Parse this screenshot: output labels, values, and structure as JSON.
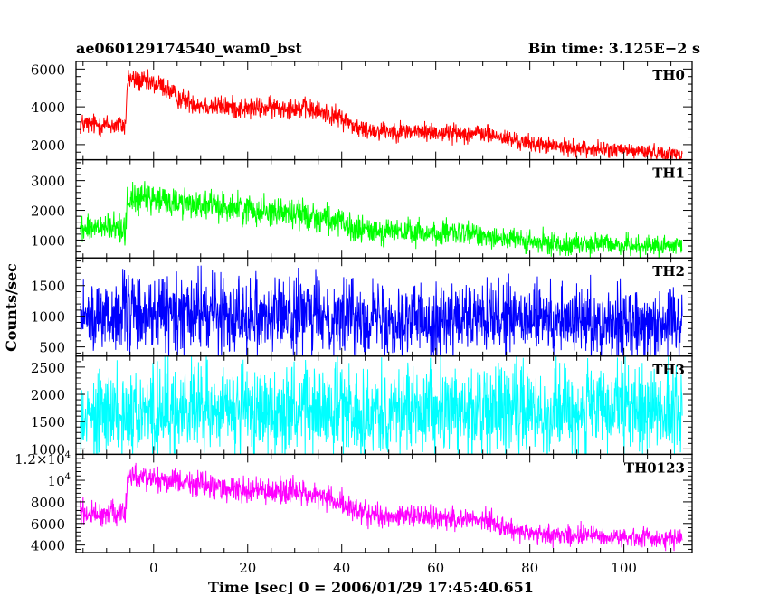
{
  "header": {
    "obs_id": "ae060129174540_wam0_bst",
    "bin_time": "Bin time: 3.125E−2 s"
  },
  "colors": {
    "TH0": "#ff0000",
    "TH1": "#00ff00",
    "TH2": "#0000ff",
    "TH3": "#00ffff",
    "TH0123": "#ff00ff"
  },
  "chart_data": {
    "type": "line",
    "xlabel": "Time [sec] 0 = 2006/01/29 17:45:40.651",
    "ylabel": "Counts/sec",
    "xlim": [
      -16.5,
      114.5
    ],
    "x_ticks": [
      0,
      20,
      40,
      60,
      80,
      100
    ],
    "x_range_data": [
      -15.6,
      112.4
    ],
    "panels": [
      {
        "name": "TH0",
        "ylim": [
          1200,
          6400
        ],
        "y_ticks": [
          {
            "v": 2000,
            "label": "2000"
          },
          {
            "v": 4000,
            "label": "4000"
          },
          {
            "v": 6000,
            "label": "6000"
          }
        ],
        "trend": [
          [
            -15.6,
            3100
          ],
          [
            -6,
            3000
          ],
          [
            -5.5,
            5500
          ],
          [
            -2,
            5300
          ],
          [
            2,
            5100
          ],
          [
            5,
            4500
          ],
          [
            10,
            4100
          ],
          [
            20,
            3900
          ],
          [
            30,
            4000
          ],
          [
            36,
            3700
          ],
          [
            40,
            3400
          ],
          [
            44,
            2800
          ],
          [
            55,
            2700
          ],
          [
            65,
            2600
          ],
          [
            70,
            2600
          ],
          [
            80,
            2050
          ],
          [
            90,
            1800
          ],
          [
            100,
            1700
          ],
          [
            112.4,
            1500
          ]
        ],
        "noise": [
          [
            -15.6,
            900
          ],
          [
            30,
            900
          ],
          [
            112.4,
            600
          ]
        ]
      },
      {
        "name": "TH1",
        "ylim": [
          400,
          3700
        ],
        "y_ticks": [
          {
            "v": 1000,
            "label": "1000"
          },
          {
            "v": 2000,
            "label": "2000"
          },
          {
            "v": 3000,
            "label": "3000"
          }
        ],
        "trend": [
          [
            -15.6,
            1400
          ],
          [
            -6,
            1400
          ],
          [
            -5.5,
            2400
          ],
          [
            0,
            2350
          ],
          [
            10,
            2200
          ],
          [
            20,
            2050
          ],
          [
            30,
            1900
          ],
          [
            38,
            1700
          ],
          [
            42,
            1350
          ],
          [
            55,
            1250
          ],
          [
            65,
            1200
          ],
          [
            70,
            1200
          ],
          [
            80,
            900
          ],
          [
            100,
            850
          ],
          [
            112.4,
            750
          ]
        ],
        "noise": [
          [
            -15.6,
            800
          ],
          [
            30,
            800
          ],
          [
            112.4,
            500
          ]
        ]
      },
      {
        "name": "TH2",
        "ylim": [
          350,
          1950
        ],
        "y_ticks": [
          {
            "v": 500,
            "label": "500"
          },
          {
            "v": 1000,
            "label": "1000"
          },
          {
            "v": 1500,
            "label": "1500"
          }
        ],
        "trend": [
          [
            -15.6,
            1000
          ],
          [
            0,
            1050
          ],
          [
            20,
            1050
          ],
          [
            40,
            1000
          ],
          [
            60,
            950
          ],
          [
            80,
            930
          ],
          [
            112.4,
            900
          ]
        ],
        "noise": [
          [
            -15.6,
            1000
          ],
          [
            112.4,
            900
          ]
        ]
      },
      {
        "name": "TH3",
        "ylim": [
          900,
          2700
        ],
        "y_ticks": [
          {
            "v": 1000,
            "label": "1000"
          },
          {
            "v": 1500,
            "label": "1500"
          },
          {
            "v": 2000,
            "label": "2000"
          },
          {
            "v": 2500,
            "label": "2500"
          }
        ],
        "trend": [
          [
            -15.6,
            1700
          ],
          [
            112.4,
            1700
          ]
        ],
        "noise": [
          [
            -15.6,
            1300
          ],
          [
            112.4,
            1300
          ]
        ]
      },
      {
        "name": "TH0123",
        "ylim": [
          3300,
          12400
        ],
        "y_ticks": [
          {
            "v": 4000,
            "label": "4000"
          },
          {
            "v": 6000,
            "label": "6000"
          },
          {
            "v": 8000,
            "label": "8000"
          },
          {
            "v": 10000,
            "label": "10",
            "sup": "4"
          },
          {
            "v": 12000,
            "label": "1.2×10",
            "sup": "4"
          }
        ],
        "trend": [
          [
            -15.6,
            7000
          ],
          [
            -6,
            6800
          ],
          [
            -5.5,
            10500
          ],
          [
            0,
            10200
          ],
          [
            10,
            9600
          ],
          [
            20,
            9000
          ],
          [
            30,
            9000
          ],
          [
            36,
            8500
          ],
          [
            40,
            7800
          ],
          [
            45,
            6800
          ],
          [
            55,
            6600
          ],
          [
            65,
            6500
          ],
          [
            70,
            6400
          ],
          [
            80,
            5000
          ],
          [
            90,
            4900
          ],
          [
            100,
            4700
          ],
          [
            112.4,
            4600
          ]
        ],
        "noise": [
          [
            -15.6,
            1800
          ],
          [
            30,
            1800
          ],
          [
            112.4,
            1400
          ]
        ]
      }
    ]
  }
}
